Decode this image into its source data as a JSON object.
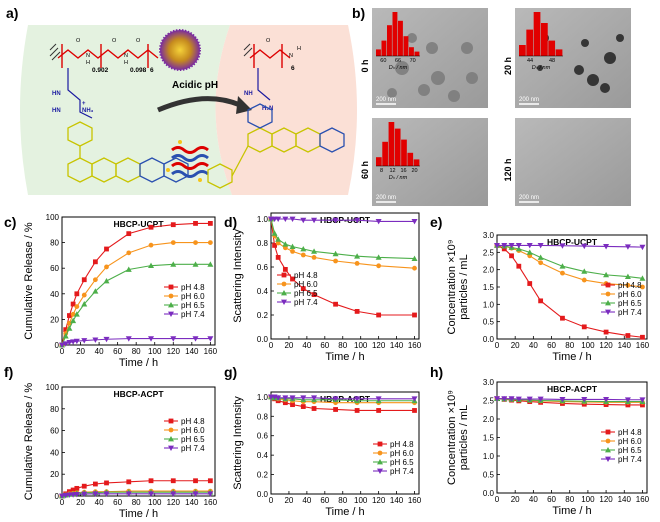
{
  "panels": {
    "a": {
      "label": "a)",
      "arrow_label": "Acidic pH",
      "subscripts": {
        "x1": "0.902",
        "x2": "0.098",
        "n1": "6",
        "n2": "6"
      },
      "atoms": {
        "o": "O",
        "n": "N",
        "h": "H",
        "hn": "HN",
        "hn2": "HN",
        "nh": "NH",
        "nh3": "NH₃",
        "h2n": "H₂N",
        "plus": "+"
      }
    },
    "b": {
      "label": "b)",
      "images": [
        {
          "time": "0 h",
          "scale": "200 nm",
          "hist_ticks": [
            "60",
            "66",
            "70"
          ],
          "hist_label": "Dₕ / nm",
          "bars": [
            0.15,
            0.35,
            0.7,
            1.0,
            0.8,
            0.45,
            0.2,
            0.1
          ]
        },
        {
          "time": "20 h",
          "scale": "200 nm",
          "hist_ticks": [
            "44",
            "48"
          ],
          "hist_label": "Dₕ / nm",
          "bars": [
            0.25,
            0.6,
            1.0,
            0.75,
            0.35,
            0.15
          ]
        },
        {
          "time": "60 h",
          "scale": "200 nm",
          "hist_ticks": [
            "8",
            "12",
            "16",
            "20"
          ],
          "hist_label": "Dₕ / nm",
          "bars": [
            0.2,
            0.55,
            1.0,
            0.85,
            0.6,
            0.3,
            0.15
          ]
        },
        {
          "time": "120 h",
          "scale": "200 nm"
        }
      ]
    }
  },
  "chart_data": [
    {
      "id": "c",
      "label": "c)",
      "type": "line",
      "title": "HBCP-UCPT",
      "xlabel": "Time / h",
      "ylabel": "Cumulative Release / %",
      "xlim": [
        0,
        165
      ],
      "ylim": [
        0,
        100
      ],
      "xticks": [
        0,
        20,
        40,
        60,
        80,
        100,
        120,
        140,
        160
      ],
      "yticks": [
        0,
        20,
        40,
        60,
        80,
        100
      ],
      "legend_position": "center-right",
      "x": [
        0,
        4,
        8,
        12,
        16,
        24,
        36,
        48,
        72,
        96,
        120,
        144,
        160
      ],
      "series": [
        {
          "name": "pH 4.8",
          "values": [
            0,
            12,
            23,
            32,
            40,
            51,
            65,
            75,
            87,
            92,
            94,
            95,
            95
          ]
        },
        {
          "name": "pH 6.0",
          "values": [
            0,
            9,
            17,
            24,
            30,
            39,
            51,
            61,
            72,
            78,
            80,
            80,
            80
          ]
        },
        {
          "name": "pH 6.5",
          "values": [
            0,
            7,
            13,
            19,
            24,
            32,
            42,
            50,
            59,
            62,
            63,
            63,
            63
          ]
        },
        {
          "name": "pH 7.4",
          "values": [
            0,
            1,
            2,
            2.5,
            3,
            3.5,
            4,
            4.5,
            5,
            5,
            5,
            5,
            5
          ]
        }
      ]
    },
    {
      "id": "d",
      "label": "d)",
      "type": "line",
      "title": "HBCP-UCPT",
      "xlabel": "Time / h",
      "ylabel": "Scattering Intensity",
      "xlim": [
        0,
        165
      ],
      "ylim": [
        0,
        1.05
      ],
      "xticks": [
        0,
        20,
        40,
        60,
        80,
        100,
        120,
        140,
        160
      ],
      "yticks": [
        0,
        0.2,
        0.4,
        0.6,
        0.8,
        1.0
      ],
      "legend_position": "lower-left",
      "x": [
        0,
        4,
        8,
        16,
        24,
        36,
        48,
        72,
        96,
        120,
        160
      ],
      "series": [
        {
          "name": "pH 4.8",
          "values": [
            1.0,
            0.78,
            0.68,
            0.58,
            0.5,
            0.42,
            0.37,
            0.29,
            0.23,
            0.2,
            0.2
          ]
        },
        {
          "name": "pH 6.0",
          "values": [
            1.0,
            0.86,
            0.8,
            0.76,
            0.73,
            0.7,
            0.68,
            0.65,
            0.63,
            0.61,
            0.59
          ]
        },
        {
          "name": "pH 6.5",
          "values": [
            1.0,
            0.88,
            0.83,
            0.79,
            0.77,
            0.75,
            0.73,
            0.71,
            0.69,
            0.68,
            0.67
          ]
        },
        {
          "name": "pH 7.4",
          "values": [
            1.0,
            1.0,
            1.0,
            1.0,
            1.0,
            0.99,
            0.99,
            0.99,
            0.99,
            0.98,
            0.98
          ]
        }
      ]
    },
    {
      "id": "e",
      "label": "e)",
      "type": "line",
      "title": "HBCP-UCPT",
      "xlabel": "Time / h",
      "ylabel": "Concentration ×10⁹ particles / mL",
      "xlim": [
        0,
        165
      ],
      "ylim": [
        0,
        3.0
      ],
      "xticks": [
        0,
        20,
        40,
        60,
        80,
        100,
        120,
        140,
        160
      ],
      "yticks": [
        0,
        0.5,
        1.0,
        1.5,
        2.0,
        2.5,
        3.0
      ],
      "legend_position": "center-right",
      "x": [
        0,
        8,
        16,
        24,
        36,
        48,
        72,
        96,
        120,
        144,
        160
      ],
      "series": [
        {
          "name": "pH 4.8",
          "values": [
            2.7,
            2.6,
            2.4,
            2.1,
            1.6,
            1.1,
            0.6,
            0.35,
            0.2,
            0.1,
            0.05
          ]
        },
        {
          "name": "pH 6.0",
          "values": [
            2.7,
            2.68,
            2.62,
            2.55,
            2.4,
            2.2,
            1.9,
            1.7,
            1.6,
            1.55,
            1.5
          ]
        },
        {
          "name": "pH 6.5",
          "values": [
            2.7,
            2.68,
            2.64,
            2.6,
            2.5,
            2.35,
            2.1,
            1.95,
            1.85,
            1.8,
            1.75
          ]
        },
        {
          "name": "pH 7.4",
          "values": [
            2.7,
            2.7,
            2.7,
            2.7,
            2.7,
            2.7,
            2.69,
            2.68,
            2.67,
            2.66,
            2.65
          ]
        }
      ]
    },
    {
      "id": "f",
      "label": "f)",
      "type": "line",
      "title": "HBCP-ACPT",
      "xlabel": "Time / h",
      "ylabel": "Cumulative Release / %",
      "xlim": [
        0,
        165
      ],
      "ylim": [
        0,
        100
      ],
      "xticks": [
        0,
        20,
        40,
        60,
        80,
        100,
        120,
        140,
        160
      ],
      "yticks": [
        0,
        20,
        40,
        60,
        80,
        100
      ],
      "legend_position": "center-right",
      "x": [
        0,
        4,
        8,
        12,
        16,
        24,
        36,
        48,
        72,
        96,
        120,
        144,
        160
      ],
      "series": [
        {
          "name": "pH 4.8",
          "values": [
            0,
            2,
            4,
            5.5,
            7,
            9,
            11,
            12,
            13,
            14,
            14,
            14,
            14
          ]
        },
        {
          "name": "pH 6.0",
          "values": [
            0,
            1,
            2,
            2.5,
            3,
            3.5,
            4,
            4,
            4.5,
            4.5,
            4.5,
            4.5,
            4.5
          ]
        },
        {
          "name": "pH 6.5",
          "values": [
            0,
            0.8,
            1.5,
            2,
            2.5,
            3,
            3,
            3.5,
            3.5,
            3.5,
            3.5,
            3.5,
            3.5
          ]
        },
        {
          "name": "pH 7.4",
          "values": [
            0,
            0.5,
            1,
            1.2,
            1.5,
            1.8,
            2,
            2,
            2,
            2,
            2,
            2,
            2
          ]
        }
      ]
    },
    {
      "id": "g",
      "label": "g)",
      "type": "line",
      "title": "HBCP-ACPT",
      "xlabel": "Time / h",
      "ylabel": "Scattering Intensity",
      "xlim": [
        0,
        165
      ],
      "ylim": [
        0,
        1.05
      ],
      "xticks": [
        0,
        20,
        40,
        60,
        80,
        100,
        120,
        140,
        160
      ],
      "yticks": [
        0,
        0.2,
        0.4,
        0.6,
        0.8,
        1.0
      ],
      "legend_position": "center-right",
      "x": [
        0,
        4,
        8,
        16,
        24,
        36,
        48,
        72,
        96,
        120,
        160
      ],
      "series": [
        {
          "name": "pH 4.8",
          "values": [
            1.0,
            0.98,
            0.96,
            0.94,
            0.92,
            0.9,
            0.88,
            0.87,
            0.86,
            0.86,
            0.86
          ]
        },
        {
          "name": "pH 6.0",
          "values": [
            1.0,
            0.99,
            0.98,
            0.97,
            0.96,
            0.95,
            0.95,
            0.94,
            0.94,
            0.94,
            0.94
          ]
        },
        {
          "name": "pH 6.5",
          "values": [
            1.0,
            0.99,
            0.99,
            0.98,
            0.98,
            0.97,
            0.97,
            0.97,
            0.96,
            0.96,
            0.96
          ]
        },
        {
          "name": "pH 7.4",
          "values": [
            1.0,
            1.0,
            0.99,
            0.99,
            0.99,
            0.99,
            0.99,
            0.98,
            0.98,
            0.98,
            0.98
          ]
        }
      ]
    },
    {
      "id": "h",
      "label": "h)",
      "type": "line",
      "title": "HBCP-ACPT",
      "xlabel": "Time / h",
      "ylabel": "Concentration ×10⁹ particles / mL",
      "xlim": [
        0,
        165
      ],
      "ylim": [
        0,
        3.0
      ],
      "xticks": [
        0,
        20,
        40,
        60,
        80,
        100,
        120,
        140,
        160
      ],
      "yticks": [
        0,
        0.5,
        1.0,
        1.5,
        2.0,
        2.5,
        3.0
      ],
      "legend_position": "center-right",
      "x": [
        0,
        8,
        16,
        24,
        36,
        48,
        72,
        96,
        120,
        144,
        160
      ],
      "series": [
        {
          "name": "pH 4.8",
          "values": [
            2.55,
            2.53,
            2.51,
            2.49,
            2.47,
            2.45,
            2.42,
            2.4,
            2.39,
            2.38,
            2.38
          ]
        },
        {
          "name": "pH 6.0",
          "values": [
            2.55,
            2.54,
            2.53,
            2.52,
            2.5,
            2.49,
            2.47,
            2.46,
            2.45,
            2.45,
            2.45
          ]
        },
        {
          "name": "pH 6.5",
          "values": [
            2.55,
            2.54,
            2.53,
            2.52,
            2.51,
            2.5,
            2.49,
            2.48,
            2.47,
            2.47,
            2.47
          ]
        },
        {
          "name": "pH 7.4",
          "values": [
            2.55,
            2.55,
            2.55,
            2.54,
            2.54,
            2.54,
            2.53,
            2.53,
            2.53,
            2.52,
            2.52
          ]
        }
      ]
    }
  ],
  "series_colors": [
    "#e41a1c",
    "#f7941d",
    "#4daf4a",
    "#7b2cbf"
  ],
  "series_markers": [
    "square",
    "circle",
    "triangle-up",
    "triangle-down"
  ]
}
